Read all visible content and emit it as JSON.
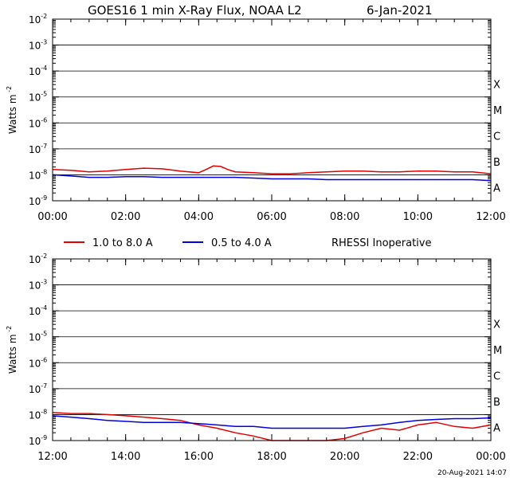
{
  "header": {
    "title": "GOES16 1 min X-Ray Flux, NOAA L2",
    "date": "6-Jan-2021"
  },
  "legend": {
    "entries": [
      {
        "label": "1.0 to 8.0 A",
        "color": "#e00000"
      },
      {
        "label": "0.5 to 4.0 A",
        "color": "#0000e0"
      }
    ],
    "note": "RHESSI Inoperative"
  },
  "footer": {
    "timestamp": "20-Aug-2021 14:07"
  },
  "chart_data": [
    {
      "type": "line",
      "ylabel": "Watts m",
      "ylabel_sup": "-2",
      "y_scale": "log",
      "ylim": [
        1e-09,
        0.01
      ],
      "yticks": [
        {
          "base": "10",
          "exp": "-2"
        },
        {
          "base": "10",
          "exp": "-3"
        },
        {
          "base": "10",
          "exp": "-4"
        },
        {
          "base": "10",
          "exp": "-5"
        },
        {
          "base": "10",
          "exp": "-6"
        },
        {
          "base": "10",
          "exp": "-7"
        },
        {
          "base": "10",
          "exp": "-8"
        },
        {
          "base": "10",
          "exp": "-9"
        }
      ],
      "class_labels": [
        "X",
        "M",
        "C",
        "B",
        "A"
      ],
      "xlim": [
        "00:00",
        "12:00"
      ],
      "xticks": [
        "00:00",
        "02:00",
        "04:00",
        "06:00",
        "08:00",
        "10:00",
        "12:00"
      ],
      "grid": true,
      "series": [
        {
          "name": "1.0 to 8.0 A",
          "color": "#e00000",
          "x": [
            0,
            0.5,
            1,
            1.5,
            2,
            2.5,
            3,
            3.5,
            4,
            4.2,
            4.4,
            4.6,
            4.8,
            5,
            5.5,
            6,
            6.5,
            7,
            7.5,
            8,
            8.5,
            9,
            9.5,
            10,
            10.5,
            11,
            11.5,
            12
          ],
          "y": [
            1.6e-08,
            1.5e-08,
            1.3e-08,
            1.4e-08,
            1.6e-08,
            1.8e-08,
            1.7e-08,
            1.4e-08,
            1.2e-08,
            1.6e-08,
            2.2e-08,
            2.1e-08,
            1.6e-08,
            1.3e-08,
            1.2e-08,
            1.1e-08,
            1.1e-08,
            1.2e-08,
            1.3e-08,
            1.4e-08,
            1.4e-08,
            1.3e-08,
            1.3e-08,
            1.4e-08,
            1.4e-08,
            1.3e-08,
            1.3e-08,
            1.1e-08
          ]
        },
        {
          "name": "0.5 to 4.0 A",
          "color": "#0000e0",
          "x": [
            0,
            0.5,
            1,
            1.5,
            2,
            2.5,
            3,
            3.5,
            4,
            4.5,
            5,
            5.5,
            6,
            6.5,
            7,
            7.5,
            8,
            8.5,
            9,
            9.5,
            10,
            10.5,
            11,
            11.5,
            12
          ],
          "y": [
            1e-08,
            9e-09,
            8e-09,
            8e-09,
            8.5e-09,
            8.5e-09,
            8e-09,
            8e-09,
            8e-09,
            8e-09,
            8e-09,
            7.5e-09,
            7e-09,
            7e-09,
            7e-09,
            6.5e-09,
            6.5e-09,
            6.5e-09,
            6.5e-09,
            6.5e-09,
            6.5e-09,
            6.5e-09,
            6.5e-09,
            6.5e-09,
            6e-09
          ]
        }
      ]
    },
    {
      "type": "line",
      "ylabel": "Watts m",
      "ylabel_sup": "-2",
      "y_scale": "log",
      "ylim": [
        1e-09,
        0.01
      ],
      "yticks": [
        {
          "base": "10",
          "exp": "-2"
        },
        {
          "base": "10",
          "exp": "-3"
        },
        {
          "base": "10",
          "exp": "-4"
        },
        {
          "base": "10",
          "exp": "-5"
        },
        {
          "base": "10",
          "exp": "-6"
        },
        {
          "base": "10",
          "exp": "-7"
        },
        {
          "base": "10",
          "exp": "-8"
        },
        {
          "base": "10",
          "exp": "-9"
        }
      ],
      "class_labels": [
        "X",
        "M",
        "C",
        "B",
        "A"
      ],
      "xlim": [
        "12:00",
        "00:00"
      ],
      "xticks": [
        "12:00",
        "14:00",
        "16:00",
        "18:00",
        "20:00",
        "22:00",
        "00:00"
      ],
      "grid": true,
      "series": [
        {
          "name": "1.0 to 8.0 A",
          "color": "#e00000",
          "x": [
            12,
            12.5,
            13,
            13.5,
            14,
            14.5,
            15,
            15.5,
            16,
            16.5,
            17,
            17.5,
            18,
            18.5,
            19,
            19.5,
            20,
            20.5,
            21,
            21.5,
            22,
            22.5,
            23,
            23.5,
            24
          ],
          "y": [
            1.2e-08,
            1.1e-08,
            1.1e-08,
            1e-08,
            9e-09,
            8e-09,
            7e-09,
            6e-09,
            4e-09,
            3e-09,
            2e-09,
            1.5e-09,
            1e-09,
            1e-09,
            1e-09,
            1e-09,
            1.2e-09,
            2e-09,
            3e-09,
            2.5e-09,
            4e-09,
            5e-09,
            3.5e-09,
            3e-09,
            4e-09
          ]
        },
        {
          "name": "0.5 to 4.0 A",
          "color": "#0000e0",
          "x": [
            12,
            12.5,
            13,
            13.5,
            14,
            14.5,
            15,
            15.5,
            16,
            16.5,
            17,
            17.5,
            18,
            18.5,
            19,
            19.5,
            20,
            20.5,
            21,
            21.5,
            22,
            22.5,
            23,
            23.5,
            24
          ],
          "y": [
            9e-09,
            8e-09,
            7e-09,
            6e-09,
            5.5e-09,
            5e-09,
            5e-09,
            5e-09,
            4.5e-09,
            4e-09,
            3.5e-09,
            3.5e-09,
            3e-09,
            3e-09,
            3e-09,
            3e-09,
            3e-09,
            3.5e-09,
            4e-09,
            5e-09,
            6e-09,
            6.5e-09,
            7e-09,
            7e-09,
            7.5e-09
          ]
        }
      ]
    }
  ]
}
